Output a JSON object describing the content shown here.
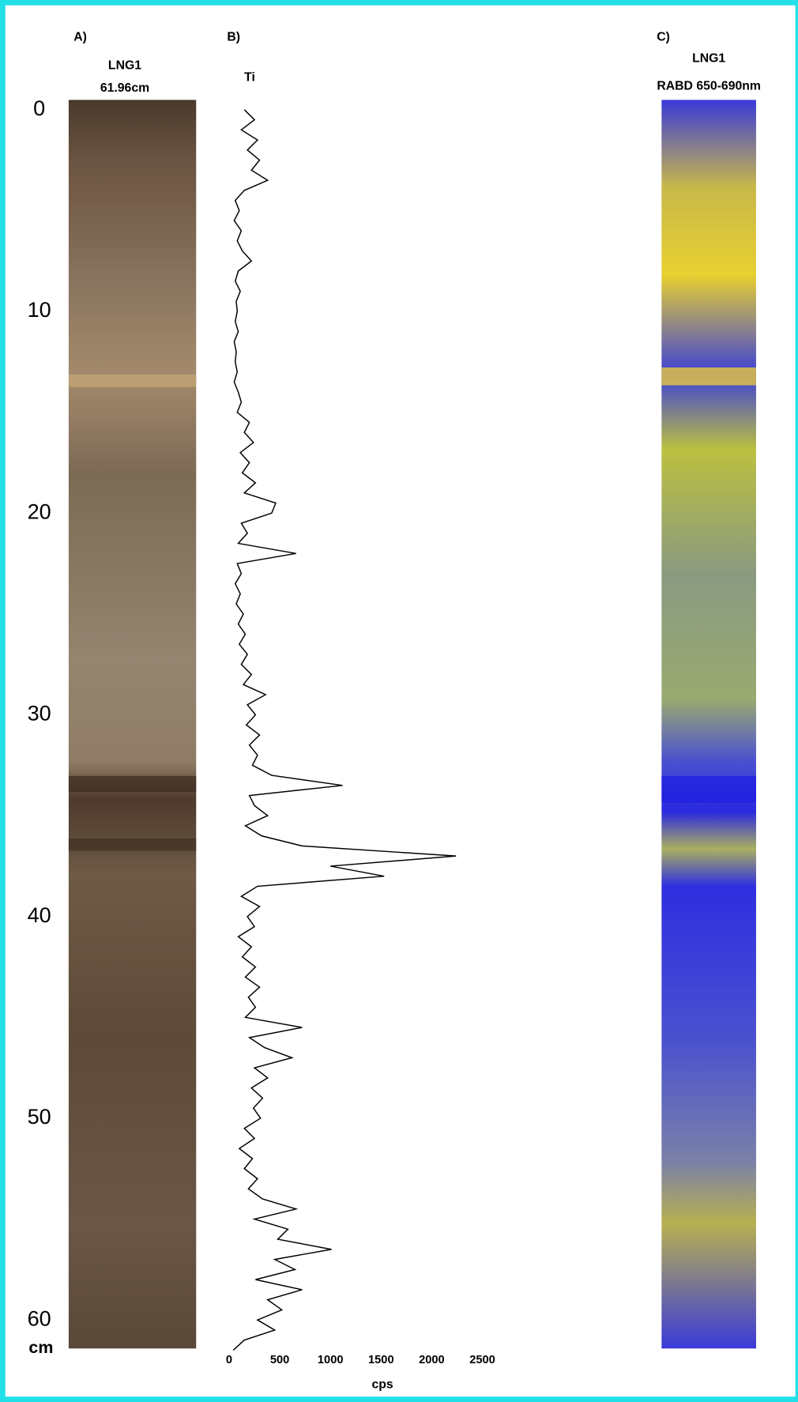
{
  "panels": [
    {
      "label": "A)",
      "title": "LNG1",
      "subtitle": "61.96cm"
    },
    {
      "label": "B)"
    },
    {
      "label": "C)",
      "title": "LNG1",
      "subtitle": "RABD 650-690nm"
    }
  ],
  "chart_data": {
    "type": "line",
    "y_label": "cm",
    "x_label": "cps",
    "ylim": [
      0,
      60
    ],
    "yticks": [
      0,
      10,
      20,
      30,
      40,
      50,
      60
    ],
    "xlim": [
      0,
      2500
    ],
    "xticks": [
      0,
      500,
      1000,
      1500,
      2000,
      2500
    ],
    "depth": [
      0,
      0.5,
      1,
      1.5,
      2,
      2.5,
      3,
      3.5,
      4,
      4.5,
      5,
      5.5,
      6,
      6.5,
      7,
      7.5,
      8,
      8.5,
      9,
      9.5,
      10,
      10.5,
      11,
      11.5,
      12,
      12.5,
      13,
      13.5,
      14,
      14.5,
      15,
      15.5,
      16,
      16.5,
      17,
      17.5,
      18,
      18.5,
      19,
      19.5,
      20,
      20.5,
      21,
      21.5,
      22,
      22.5,
      23,
      23.5,
      24,
      24.5,
      25,
      25.5,
      26,
      26.5,
      27,
      27.5,
      28,
      28.5,
      29,
      29.5,
      30,
      30.5,
      31,
      31.5,
      32,
      32.5,
      33,
      33.5,
      34,
      34.5,
      35,
      35.5,
      36,
      36.5,
      37,
      37.5,
      38,
      38.5,
      39,
      39.5,
      40,
      40.5,
      41,
      41.5,
      42,
      42.5,
      43,
      43.5,
      44,
      44.5,
      45,
      45.5,
      46,
      46.5,
      47,
      47.5,
      48,
      48.5,
      49,
      49.5,
      50,
      50.5,
      51,
      51.5,
      52,
      52.5,
      53,
      53.5,
      54,
      54.5,
      55,
      55.5,
      56,
      56.5,
      57,
      57.5,
      58,
      58.5,
      59,
      59.5,
      60,
      60.5,
      61,
      61.5
    ],
    "series": [
      {
        "name": "Ti",
        "color": "#000000",
        "values": [
          150,
          250,
          120,
          280,
          180,
          300,
          220,
          380,
          150,
          60,
          100,
          50,
          120,
          80,
          130,
          220,
          90,
          60,
          110,
          70,
          80,
          60,
          90,
          50,
          70,
          60,
          80,
          50,
          90,
          120,
          80,
          200,
          150,
          240,
          110,
          200,
          130,
          260,
          150,
          460,
          420,
          120,
          180,
          90,
          660,
          80,
          120,
          60,
          110,
          70,
          140,
          90,
          160,
          100,
          180,
          120,
          220,
          140,
          360,
          180,
          260,
          170,
          300,
          200,
          280,
          230,
          420,
          1120,
          200,
          250,
          380,
          160,
          320,
          720,
          2240,
          1000,
          1530,
          280,
          120,
          300,
          180,
          250,
          90,
          220,
          130,
          260,
          160,
          300,
          190,
          260,
          160,
          720,
          200,
          350,
          620,
          250,
          380,
          220,
          330,
          240,
          310,
          150,
          250,
          100,
          230,
          150,
          280,
          190,
          330,
          660,
          250,
          580,
          480,
          1010,
          450,
          650,
          260,
          720,
          380,
          520,
          280,
          450,
          150,
          40
        ]
      }
    ]
  }
}
